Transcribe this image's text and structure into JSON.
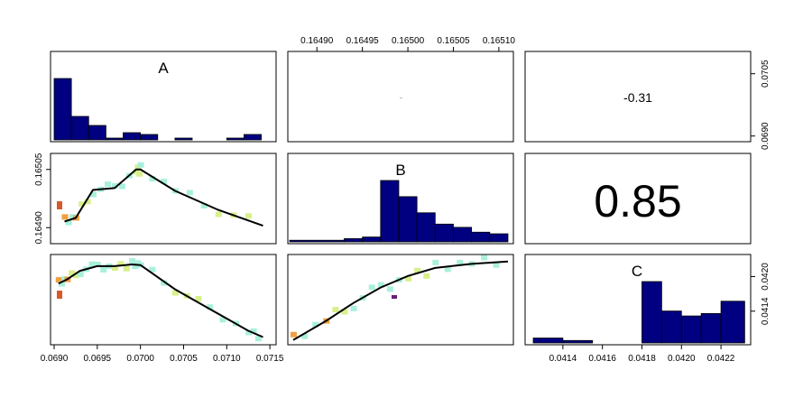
{
  "chart_data": {
    "type": "scatter-matrix",
    "variables": [
      "A",
      "B",
      "C"
    ],
    "colors": {
      "hist_fill": "#000080",
      "smooth_line": "#000000",
      "density_low": "#a8f0dc",
      "density_mid": "#d7f08a",
      "density_high": "#f0a040",
      "density_peak": "#d85a2a",
      "density_outlier": "#6a1b7a"
    },
    "axes": {
      "A": {
        "range": [
          0.069,
          0.0715
        ],
        "ticks": [
          "0.0690",
          "0.0695",
          "0.0700",
          "0.0705",
          "0.0710",
          "0.0715"
        ],
        "ticks_right": [
          "0.0690",
          "0.0705"
        ]
      },
      "B": {
        "range": [
          0.16487,
          0.16511
        ],
        "ticks": [
          "0.16490",
          "0.16495",
          "0.16500",
          "0.16505",
          "0.16510"
        ],
        "ticks_left": [
          "0.16490",
          "0.16505"
        ]
      },
      "C": {
        "range": [
          0.04122,
          0.04232
        ],
        "ticks": [
          "0.0414",
          "0.0416",
          "0.0418",
          "0.0420",
          "0.0422"
        ],
        "ticks_right": [
          "0.0414",
          "0.0420"
        ]
      }
    },
    "histograms": {
      "A": {
        "bins": [
          0.069,
          0.0692,
          0.0694,
          0.0696,
          0.0698,
          0.07,
          0.0702,
          0.0704,
          0.0706,
          0.0708,
          0.071,
          0.0712,
          0.0714
        ],
        "counts": [
          34,
          13,
          8,
          1,
          4,
          3,
          0,
          1,
          0,
          0,
          1,
          3
        ]
      },
      "B": {
        "bins": [
          0.16487,
          0.16493,
          0.16495,
          0.16497,
          0.16499,
          0.16501,
          0.16503,
          0.16505,
          0.16507,
          0.16509,
          0.16511
        ],
        "counts": [
          1,
          2,
          3,
          38,
          28,
          18,
          11,
          9,
          6,
          5
        ]
      },
      "C": {
        "bins": [
          0.04125,
          0.0414,
          0.04155,
          0.04165,
          0.0418,
          0.0419,
          0.042,
          0.0421,
          0.0422,
          0.04232
        ],
        "counts": [
          2,
          1,
          0,
          0,
          25,
          13,
          11,
          12,
          17
        ]
      }
    },
    "correlations": [
      {
        "row": 1,
        "col": 3,
        "vars": [
          "A",
          "C"
        ],
        "label": "-0.31"
      },
      {
        "row": 2,
        "col": 3,
        "vars": [
          "B",
          "C"
        ],
        "label": "0.85"
      }
    ],
    "smoothers": {
      "B_vs_A": [
        [
          0.06912,
          0.164916
        ],
        [
          0.06925,
          0.164925
        ],
        [
          0.06945,
          0.164997
        ],
        [
          0.0697,
          0.165002
        ],
        [
          0.06995,
          0.16505
        ],
        [
          0.07,
          0.16505
        ],
        [
          0.0704,
          0.164995
        ],
        [
          0.0709,
          0.164946
        ],
        [
          0.07142,
          0.164905
        ]
      ],
      "C_vs_A": [
        [
          0.06905,
          0.04188
        ],
        [
          0.06915,
          0.04195
        ],
        [
          0.0693,
          0.0421
        ],
        [
          0.0695,
          0.04218
        ],
        [
          0.0697,
          0.04218
        ],
        [
          0.0699,
          0.04221
        ],
        [
          0.07,
          0.0422
        ],
        [
          0.0704,
          0.04178
        ],
        [
          0.0708,
          0.04144
        ],
        [
          0.07125,
          0.04106
        ],
        [
          0.07142,
          0.04095
        ]
      ],
      "C_vs_B": [
        [
          0.164874,
          0.0409
        ],
        [
          0.16491,
          0.04123
        ],
        [
          0.16494,
          0.04154
        ],
        [
          0.16497,
          0.04181
        ],
        [
          0.165,
          0.04201
        ],
        [
          0.16503,
          0.04215
        ],
        [
          0.16507,
          0.04222
        ],
        [
          0.16511,
          0.04226
        ]
      ]
    }
  }
}
